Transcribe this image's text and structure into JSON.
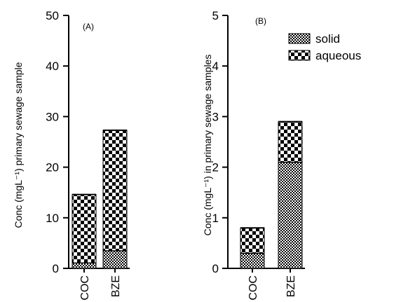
{
  "chart_data": [
    {
      "type": "bar",
      "stacked": true,
      "panel_label": "(A)",
      "categories": [
        "COC",
        "BZE"
      ],
      "series": [
        {
          "name": "solid",
          "values": [
            1.1,
            3.5
          ]
        },
        {
          "name": "aqueous",
          "values": [
            13.5,
            23.8
          ]
        }
      ],
      "totals": [
        14.6,
        27.3
      ],
      "ylabel": "Conc (mgL⁻¹) primary sewage sample",
      "ylim": [
        0,
        50
      ],
      "yticks": [
        "0",
        "10",
        "20",
        "30",
        "40",
        "50"
      ],
      "legend": "none",
      "grid": false
    },
    {
      "type": "bar",
      "stacked": true,
      "panel_label": "(B)",
      "categories": [
        "COC",
        "BZE"
      ],
      "series": [
        {
          "name": "solid",
          "values": [
            0.3,
            2.1
          ]
        },
        {
          "name": "aqueous",
          "values": [
            0.5,
            0.8
          ]
        }
      ],
      "totals": [
        0.8,
        2.9
      ],
      "ylabel": "Conc (mgL⁻¹) in primary sewage samples",
      "ylim": [
        0,
        5
      ],
      "yticks": [
        "0",
        "1",
        "2",
        "3",
        "4",
        "5"
      ],
      "legend": "top-right",
      "grid": false
    }
  ],
  "patterns": {
    "solid": "fine-checker",
    "aqueous": "coarse-checker"
  },
  "colors": {
    "ink": "#000000",
    "background": "#ffffff"
  }
}
